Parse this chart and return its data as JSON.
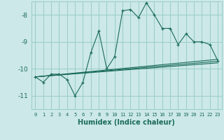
{
  "xlabel": "Humidex (Indice chaleur)",
  "ylabel": "",
  "bg_color": "#cce8e8",
  "grid_color": "#99cccc",
  "line_color": "#1a6b5a",
  "xlim": [
    -0.5,
    23.5
  ],
  "ylim": [
    -11.5,
    -7.5
  ],
  "yticks": [
    -11,
    -10,
    -9,
    -8
  ],
  "xticks": [
    0,
    1,
    2,
    3,
    4,
    5,
    6,
    7,
    8,
    9,
    10,
    11,
    12,
    13,
    14,
    15,
    16,
    17,
    18,
    19,
    20,
    21,
    22,
    23
  ],
  "series1_x": [
    0,
    1,
    2,
    3,
    4,
    5,
    6,
    7,
    8,
    9,
    10,
    11,
    12,
    13,
    14,
    15,
    16,
    17,
    18,
    19,
    20,
    21,
    22,
    23
  ],
  "series1_y": [
    -10.3,
    -10.5,
    -10.2,
    -10.2,
    -10.4,
    -11.0,
    -10.5,
    -9.4,
    -8.6,
    -10.0,
    -9.55,
    -7.85,
    -7.8,
    -8.1,
    -7.55,
    -8.0,
    -8.5,
    -8.5,
    -9.1,
    -8.7,
    -9.0,
    -9.0,
    -9.1,
    -9.7
  ],
  "series2_x": [
    0,
    23
  ],
  "series2_y": [
    -10.3,
    -9.65
  ],
  "series3_x": [
    0,
    23
  ],
  "series3_y": [
    -10.3,
    -9.72
  ],
  "series4_x": [
    0,
    23
  ],
  "series4_y": [
    -10.3,
    -9.78
  ]
}
